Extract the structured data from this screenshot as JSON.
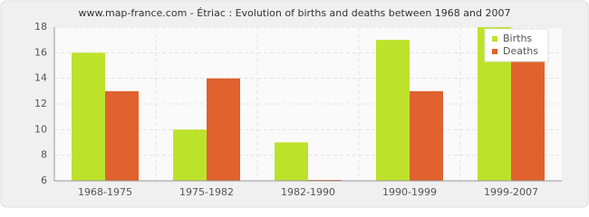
{
  "chart_data": {
    "type": "bar",
    "title": "www.map-france.com - Étriac : Evolution of births and deaths between 1968 and 2007",
    "categories": [
      "1968-1975",
      "1975-1982",
      "1982-1990",
      "1990-1999",
      "1999-2007"
    ],
    "series": [
      {
        "name": "Births",
        "color": "#bde22c",
        "values": [
          16,
          10,
          9,
          17,
          18
        ]
      },
      {
        "name": "Deaths",
        "color": "#e0622e",
        "values": [
          13,
          14,
          6,
          13,
          16
        ]
      }
    ],
    "ylim": [
      6,
      18
    ],
    "yticks": [
      6,
      8,
      10,
      12,
      14,
      16,
      18
    ],
    "grid": true,
    "legend": "top-right"
  }
}
